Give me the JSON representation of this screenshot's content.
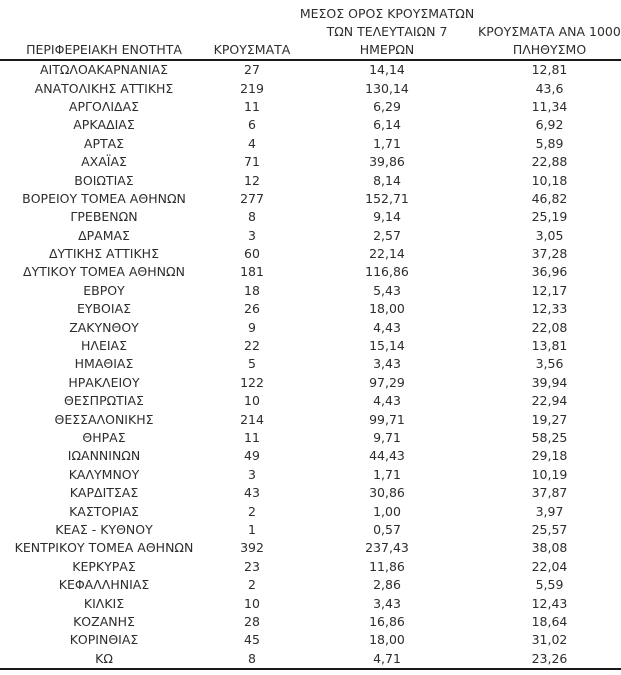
{
  "table": {
    "headers": [
      {
        "lines": [
          "ΠΕΡΙΦΕΡΕΙΑΚΗ ΕΝΟΤΗΤΑ"
        ]
      },
      {
        "lines": [
          "ΚΡΟΥΣΜΑΤΑ"
        ]
      },
      {
        "lines": [
          "ΜΕΣΟΣ ΟΡΟΣ ΚΡΟΥΣΜΑΤΩΝ",
          "ΤΩΝ ΤΕΛΕΥΤΑΙΩΝ 7",
          "ΗΜΕΡΩΝ"
        ]
      },
      {
        "lines": [
          "ΚΡΟΥΣΜΑΤΑ ΑΝΑ 100000",
          "ΠΛΗΘΥΣΜΟ"
        ]
      }
    ],
    "rows": [
      {
        "region": "ΑΙΤΩΛΟΑΚΑΡΝΑΝΙΑΣ",
        "cases": "27",
        "avg7": "14,14",
        "per100k": "12,81"
      },
      {
        "region": "ΑΝΑΤΟΛΙΚΗΣ ΑΤΤΙΚΗΣ",
        "cases": "219",
        "avg7": "130,14",
        "per100k": "43,6"
      },
      {
        "region": "ΑΡΓΟΛΙΔΑΣ",
        "cases": "11",
        "avg7": "6,29",
        "per100k": "11,34"
      },
      {
        "region": "ΑΡΚΑΔΙΑΣ",
        "cases": "6",
        "avg7": "6,14",
        "per100k": "6,92"
      },
      {
        "region": "ΑΡΤΑΣ",
        "cases": "4",
        "avg7": "1,71",
        "per100k": "5,89"
      },
      {
        "region": "ΑΧΑΪΑΣ",
        "cases": "71",
        "avg7": "39,86",
        "per100k": "22,88"
      },
      {
        "region": "ΒΟΙΩΤΙΑΣ",
        "cases": "12",
        "avg7": "8,14",
        "per100k": "10,18"
      },
      {
        "region": "ΒΟΡΕΙΟΥ ΤΟΜΕΑ ΑΘΗΝΩΝ",
        "cases": "277",
        "avg7": "152,71",
        "per100k": "46,82"
      },
      {
        "region": "ΓΡΕΒΕΝΩΝ",
        "cases": "8",
        "avg7": "9,14",
        "per100k": "25,19"
      },
      {
        "region": "ΔΡΑΜΑΣ",
        "cases": "3",
        "avg7": "2,57",
        "per100k": "3,05"
      },
      {
        "region": "ΔΥΤΙΚΗΣ ΑΤΤΙΚΗΣ",
        "cases": "60",
        "avg7": "22,14",
        "per100k": "37,28"
      },
      {
        "region": "ΔΥΤΙΚΟΥ ΤΟΜΕΑ ΑΘΗΝΩΝ",
        "cases": "181",
        "avg7": "116,86",
        "per100k": "36,96"
      },
      {
        "region": "ΕΒΡΟΥ",
        "cases": "18",
        "avg7": "5,43",
        "per100k": "12,17"
      },
      {
        "region": "ΕΥΒΟΙΑΣ",
        "cases": "26",
        "avg7": "18,00",
        "per100k": "12,33"
      },
      {
        "region": "ΖΑΚΥΝΘΟΥ",
        "cases": "9",
        "avg7": "4,43",
        "per100k": "22,08"
      },
      {
        "region": "ΗΛΕΙΑΣ",
        "cases": "22",
        "avg7": "15,14",
        "per100k": "13,81"
      },
      {
        "region": "ΗΜΑΘΙΑΣ",
        "cases": "5",
        "avg7": "3,43",
        "per100k": "3,56"
      },
      {
        "region": "ΗΡΑΚΛΕΙΟΥ",
        "cases": "122",
        "avg7": "97,29",
        "per100k": "39,94"
      },
      {
        "region": "ΘΕΣΠΡΩΤΙΑΣ",
        "cases": "10",
        "avg7": "4,43",
        "per100k": "22,94"
      },
      {
        "region": "ΘΕΣΣΑΛΟΝΙΚΗΣ",
        "cases": "214",
        "avg7": "99,71",
        "per100k": "19,27"
      },
      {
        "region": "ΘΗΡΑΣ",
        "cases": "11",
        "avg7": "9,71",
        "per100k": "58,25"
      },
      {
        "region": "ΙΩΑΝΝΙΝΩΝ",
        "cases": "49",
        "avg7": "44,43",
        "per100k": "29,18"
      },
      {
        "region": "ΚΑΛΥΜΝΟΥ",
        "cases": "3",
        "avg7": "1,71",
        "per100k": "10,19"
      },
      {
        "region": "ΚΑΡΔΙΤΣΑΣ",
        "cases": "43",
        "avg7": "30,86",
        "per100k": "37,87"
      },
      {
        "region": "ΚΑΣΤΟΡΙΑΣ",
        "cases": "2",
        "avg7": "1,00",
        "per100k": "3,97"
      },
      {
        "region": "ΚΕΑΣ - ΚΥΘΝΟΥ",
        "cases": "1",
        "avg7": "0,57",
        "per100k": "25,57"
      },
      {
        "region": "ΚΕΝΤΡΙΚΟΥ ΤΟΜΕΑ ΑΘΗΝΩΝ",
        "cases": "392",
        "avg7": "237,43",
        "per100k": "38,08"
      },
      {
        "region": "ΚΕΡΚΥΡΑΣ",
        "cases": "23",
        "avg7": "11,86",
        "per100k": "22,04"
      },
      {
        "region": "ΚΕΦΑΛΛΗΝΙΑΣ",
        "cases": "2",
        "avg7": "2,86",
        "per100k": "5,59"
      },
      {
        "region": "ΚΙΛΚΙΣ",
        "cases": "10",
        "avg7": "3,43",
        "per100k": "12,43"
      },
      {
        "region": "ΚΟΖΑΝΗΣ",
        "cases": "28",
        "avg7": "16,86",
        "per100k": "18,64"
      },
      {
        "region": "ΚΟΡΙΝΘΙΑΣ",
        "cases": "45",
        "avg7": "18,00",
        "per100k": "31,02"
      },
      {
        "region": "ΚΩ",
        "cases": "8",
        "avg7": "4,71",
        "per100k": "23,26"
      }
    ],
    "colors": {
      "text": "#2d2d2d",
      "rule": "#1a1a1a",
      "background": "#ffffff"
    }
  }
}
